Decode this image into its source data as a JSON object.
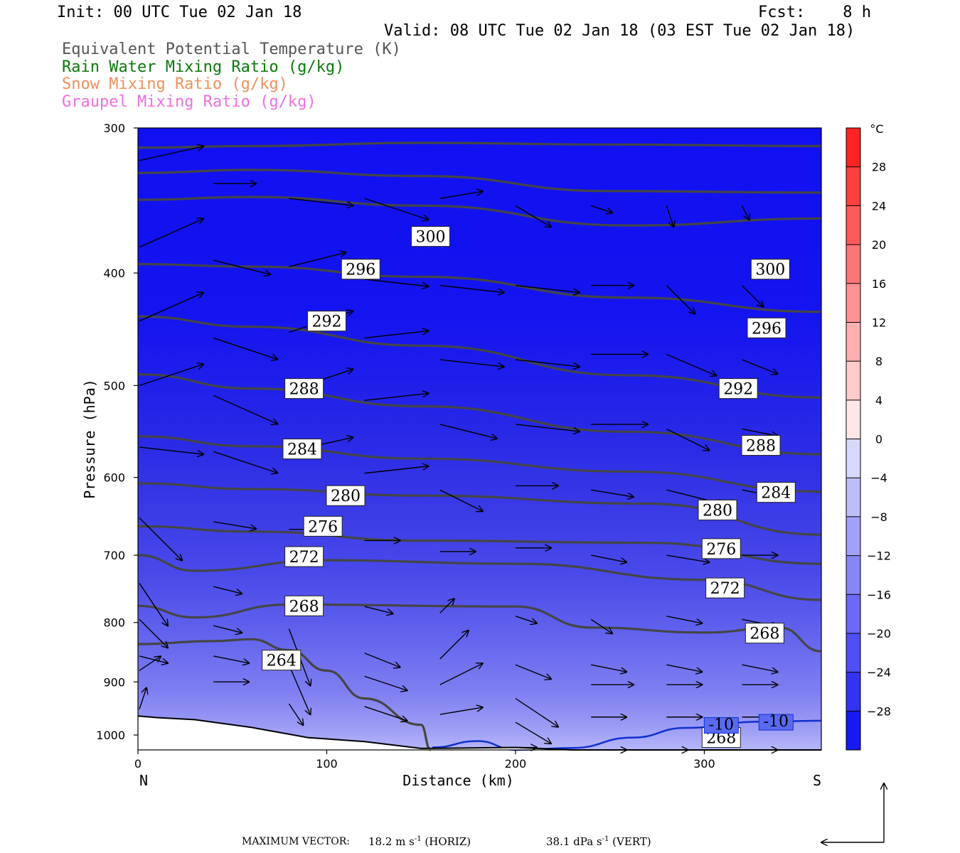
{
  "header": {
    "init": "Init: 00 UTC Tue 02 Jan 18",
    "fcst": "Fcst:    8 h",
    "valid": "Valid: 08 UTC Tue 02 Jan 18 (03 EST Tue 02 Jan 18)",
    "fields": [
      {
        "label": "Equivalent Potential Temperature (K)",
        "color": "#555555"
      },
      {
        "label": "Rain Water Mixing Ratio (g/kg)",
        "color": "#0a7a0a"
      },
      {
        "label": "Snow Mixing Ratio (g/kg)",
        "color": "#f0905a"
      },
      {
        "label": "Graupel Mixing Ratio (g/kg)",
        "color": "#f070e0"
      }
    ]
  },
  "chart_data": {
    "type": "heatmap",
    "xlabel": "Distance (km)",
    "ylabel": "Pressure (hPa)",
    "xlim": [
      0,
      362
    ],
    "ylim": [
      1030,
      300
    ],
    "y_scale": "log",
    "x_ticks": [
      0,
      100,
      200,
      300
    ],
    "y_ticks": [
      300,
      400,
      500,
      600,
      700,
      800,
      900,
      1000
    ],
    "x_end_labels": {
      "left": "N",
      "right": "S"
    },
    "colorbar": {
      "unit": "°C",
      "ticks": [
        28,
        24,
        20,
        16,
        12,
        8,
        4,
        0,
        -4,
        -8,
        -12,
        -16,
        -20,
        -24,
        -28
      ],
      "range": [
        -32,
        32
      ]
    },
    "theta_e_contours": [
      {
        "label": "300",
        "points": [
          [
            0,
            312
          ],
          [
            60,
            311
          ],
          [
            150,
            309
          ],
          [
            250,
            310
          ],
          [
            362,
            311
          ]
        ]
      },
      {
        "label": "300",
        "points": [
          [
            0,
            328
          ],
          [
            60,
            326
          ],
          [
            150,
            330
          ],
          [
            250,
            340
          ],
          [
            362,
            341
          ]
        ]
      },
      {
        "label": "300",
        "points": [
          [
            0,
            346
          ],
          [
            60,
            344
          ],
          [
            150,
            350
          ],
          [
            260,
            364
          ],
          [
            362,
            359
          ]
        ]
      },
      {
        "label": "296",
        "points": [
          [
            0,
            393
          ],
          [
            60,
            395
          ],
          [
            150,
            403
          ],
          [
            260,
            420
          ],
          [
            362,
            432
          ]
        ]
      },
      {
        "label": "292",
        "points": [
          [
            0,
            436
          ],
          [
            60,
            445
          ],
          [
            150,
            462
          ],
          [
            260,
            490
          ],
          [
            362,
            512
          ]
        ]
      },
      {
        "label": "288",
        "points": [
          [
            0,
            489
          ],
          [
            60,
            503
          ],
          [
            150,
            521
          ],
          [
            260,
            548
          ],
          [
            362,
            573
          ]
        ]
      },
      {
        "label": "284",
        "points": [
          [
            0,
            553
          ],
          [
            60,
            564
          ],
          [
            150,
            578
          ],
          [
            260,
            593
          ],
          [
            362,
            617
          ]
        ]
      },
      {
        "label": "280",
        "points": [
          [
            0,
            607
          ],
          [
            60,
            614
          ],
          [
            150,
            622
          ],
          [
            270,
            632
          ],
          [
            362,
            672
          ]
        ]
      },
      {
        "label": "276",
        "points": [
          [
            0,
            661
          ],
          [
            60,
            668
          ],
          [
            150,
            680
          ],
          [
            270,
            683
          ],
          [
            362,
            712
          ]
        ]
      },
      {
        "label": "272",
        "points": [
          [
            0,
            700
          ],
          [
            30,
            722
          ],
          [
            100,
            707
          ],
          [
            200,
            712
          ],
          [
            300,
            735
          ],
          [
            362,
            765
          ]
        ]
      },
      {
        "label": "268",
        "points": [
          [
            0,
            774
          ],
          [
            30,
            792
          ],
          [
            80,
            772
          ],
          [
            200,
            775
          ],
          [
            240,
            808
          ],
          [
            300,
            816
          ],
          [
            340,
            808
          ],
          [
            362,
            847
          ]
        ]
      },
      {
        "label": "264",
        "points": [
          [
            0,
            835
          ],
          [
            40,
            830
          ],
          [
            60,
            827
          ],
          [
            80,
            845
          ],
          [
            100,
            880
          ],
          [
            120,
            930
          ],
          [
            150,
            980
          ],
          [
            155,
            1030
          ]
        ]
      }
    ],
    "temperature_contours": [
      {
        "label": "-10",
        "color": "#1030d0",
        "points": [
          [
            156,
            1025
          ],
          [
            180,
            1012
          ],
          [
            200,
            1030
          ],
          [
            230,
            1026
          ],
          [
            262,
            1005
          ],
          [
            290,
            986
          ],
          [
            330,
            974
          ],
          [
            362,
            972
          ]
        ]
      }
    ],
    "contour_labels": [
      {
        "text": "300",
        "x": 155,
        "y": 372
      },
      {
        "text": "296",
        "x": 118,
        "y": 397
      },
      {
        "text": "292",
        "x": 100,
        "y": 440
      },
      {
        "text": "288",
        "x": 88,
        "y": 503
      },
      {
        "text": "284",
        "x": 87,
        "y": 567
      },
      {
        "text": "280",
        "x": 110,
        "y": 622
      },
      {
        "text": "276",
        "x": 98,
        "y": 661
      },
      {
        "text": "272",
        "x": 88,
        "y": 702
      },
      {
        "text": "268",
        "x": 88,
        "y": 774
      },
      {
        "text": "264",
        "x": 76,
        "y": 862
      },
      {
        "text": "300",
        "x": 335,
        "y": 397
      },
      {
        "text": "296",
        "x": 333,
        "y": 446
      },
      {
        "text": "292",
        "x": 318,
        "y": 503
      },
      {
        "text": "288",
        "x": 330,
        "y": 563
      },
      {
        "text": "284",
        "x": 338,
        "y": 618
      },
      {
        "text": "280",
        "x": 307,
        "y": 640
      },
      {
        "text": "276",
        "x": 309,
        "y": 691
      },
      {
        "text": "272",
        "x": 311,
        "y": 747
      },
      {
        "text": "268",
        "x": 332,
        "y": 817
      },
      {
        "text": "268",
        "x": 309,
        "y": 1005
      },
      {
        "text": "-10",
        "x": 309,
        "y": 981,
        "style": "temp"
      },
      {
        "text": "-10",
        "x": 338,
        "y": 975,
        "style": "temp"
      }
    ],
    "terrain_surface_hpa": [
      [
        0,
        963
      ],
      [
        10,
        966
      ],
      [
        30,
        970
      ],
      [
        60,
        985
      ],
      [
        90,
        1005
      ],
      [
        120,
        1013
      ],
      [
        150,
        1027
      ],
      [
        200,
        1025
      ],
      [
        230,
        1030
      ],
      [
        362,
        1030
      ]
    ],
    "wind_vectors": [
      {
        "x": 0,
        "p": 380,
        "u": 9,
        "v": 4
      },
      {
        "x": 0,
        "p": 440,
        "u": 9,
        "v": 4
      },
      {
        "x": 0,
        "p": 500,
        "u": 9,
        "v": 3
      },
      {
        "x": 0,
        "p": 320,
        "u": 9,
        "v": 2
      },
      {
        "x": 0,
        "p": 650,
        "u": 6,
        "v": -6
      },
      {
        "x": 0,
        "p": 740,
        "u": 4,
        "v": -6
      },
      {
        "x": 0,
        "p": 795,
        "u": 4,
        "v": -4
      },
      {
        "x": 0,
        "p": 880,
        "u": 3,
        "v": 2
      },
      {
        "x": 0,
        "p": 950,
        "u": 1,
        "v": 3
      },
      {
        "x": 0,
        "p": 855,
        "u": 4,
        "v": -1
      },
      {
        "x": 0,
        "p": 565,
        "u": 9,
        "v": -1
      },
      {
        "x": 40,
        "p": 335,
        "u": 6,
        "v": 0
      },
      {
        "x": 40,
        "p": 390,
        "u": 8,
        "v": -2
      },
      {
        "x": 40,
        "p": 455,
        "u": 9,
        "v": -3
      },
      {
        "x": 40,
        "p": 510,
        "u": 9,
        "v": -4
      },
      {
        "x": 40,
        "p": 570,
        "u": 9,
        "v": -3
      },
      {
        "x": 40,
        "p": 655,
        "u": 6,
        "v": -1
      },
      {
        "x": 40,
        "p": 745,
        "u": 4,
        "v": -1
      },
      {
        "x": 40,
        "p": 805,
        "u": 4,
        "v": -1
      },
      {
        "x": 40,
        "p": 855,
        "u": 5,
        "v": -1
      },
      {
        "x": 40,
        "p": 900,
        "u": 5,
        "v": 0
      },
      {
        "x": 80,
        "p": 345,
        "u": 9,
        "v": -1
      },
      {
        "x": 80,
        "p": 395,
        "u": 8,
        "v": 2
      },
      {
        "x": 80,
        "p": 450,
        "u": 9,
        "v": 3
      },
      {
        "x": 80,
        "p": 505,
        "u": 9,
        "v": 3
      },
      {
        "x": 80,
        "p": 570,
        "u": 9,
        "v": 2
      },
      {
        "x": 80,
        "p": 665,
        "u": 6,
        "v": 0
      },
      {
        "x": 80,
        "p": 760,
        "u": 3,
        "v": -2
      },
      {
        "x": 80,
        "p": 810,
        "u": 3,
        "v": -8
      },
      {
        "x": 80,
        "p": 870,
        "u": 3,
        "v": -7
      },
      {
        "x": 80,
        "p": 940,
        "u": 2,
        "v": -3
      },
      {
        "x": 120,
        "p": 345,
        "u": 9,
        "v": -3
      },
      {
        "x": 120,
        "p": 405,
        "u": 9,
        "v": -1
      },
      {
        "x": 120,
        "p": 455,
        "u": 9,
        "v": 1
      },
      {
        "x": 120,
        "p": 515,
        "u": 9,
        "v": 1
      },
      {
        "x": 120,
        "p": 595,
        "u": 9,
        "v": 1
      },
      {
        "x": 120,
        "p": 680,
        "u": 5,
        "v": 0
      },
      {
        "x": 120,
        "p": 775,
        "u": 4,
        "v": -1
      },
      {
        "x": 120,
        "p": 850,
        "u": 5,
        "v": -2
      },
      {
        "x": 120,
        "p": 890,
        "u": 6,
        "v": -2
      },
      {
        "x": 120,
        "p": 945,
        "u": 6,
        "v": -2
      },
      {
        "x": 160,
        "p": 345,
        "u": 6,
        "v": 1
      },
      {
        "x": 160,
        "p": 410,
        "u": 9,
        "v": -1
      },
      {
        "x": 160,
        "p": 475,
        "u": 9,
        "v": -1
      },
      {
        "x": 160,
        "p": 540,
        "u": 8,
        "v": -2
      },
      {
        "x": 160,
        "p": 615,
        "u": 6,
        "v": -3
      },
      {
        "x": 160,
        "p": 695,
        "u": 5,
        "v": 0
      },
      {
        "x": 160,
        "p": 785,
        "u": 2,
        "v": 2
      },
      {
        "x": 160,
        "p": 860,
        "u": 4,
        "v": 4
      },
      {
        "x": 160,
        "p": 905,
        "u": 6,
        "v": 3
      },
      {
        "x": 160,
        "p": 960,
        "u": 6,
        "v": 1
      },
      {
        "x": 200,
        "p": 350,
        "u": 5,
        "v": -3
      },
      {
        "x": 200,
        "p": 410,
        "u": 9,
        "v": -1
      },
      {
        "x": 200,
        "p": 475,
        "u": 9,
        "v": -1
      },
      {
        "x": 200,
        "p": 540,
        "u": 9,
        "v": -1
      },
      {
        "x": 200,
        "p": 610,
        "u": 6,
        "v": 0
      },
      {
        "x": 200,
        "p": 690,
        "u": 5,
        "v": 0
      },
      {
        "x": 200,
        "p": 790,
        "u": 3,
        "v": -1
      },
      {
        "x": 200,
        "p": 870,
        "u": 5,
        "v": -2
      },
      {
        "x": 200,
        "p": 930,
        "u": 6,
        "v": -4
      },
      {
        "x": 200,
        "p": 975,
        "u": 5,
        "v": -3
      },
      {
        "x": 200,
        "p": 1025,
        "u": 3,
        "v": 0
      },
      {
        "x": 240,
        "p": 350,
        "u": 3,
        "v": -1
      },
      {
        "x": 240,
        "p": 410,
        "u": 6,
        "v": 0
      },
      {
        "x": 240,
        "p": 470,
        "u": 8,
        "v": 0
      },
      {
        "x": 240,
        "p": 540,
        "u": 8,
        "v": 0
      },
      {
        "x": 240,
        "p": 615,
        "u": 6,
        "v": -1
      },
      {
        "x": 240,
        "p": 700,
        "u": 5,
        "v": -1
      },
      {
        "x": 240,
        "p": 795,
        "u": 3,
        "v": -2
      },
      {
        "x": 240,
        "p": 870,
        "u": 5,
        "v": -1
      },
      {
        "x": 240,
        "p": 905,
        "u": 6,
        "v": 0
      },
      {
        "x": 240,
        "p": 965,
        "u": 5,
        "v": 0
      },
      {
        "x": 240,
        "p": 1030,
        "u": 5,
        "v": 0
      },
      {
        "x": 280,
        "p": 350,
        "u": 1,
        "v": -3
      },
      {
        "x": 280,
        "p": 410,
        "u": 4,
        "v": -4
      },
      {
        "x": 280,
        "p": 470,
        "u": 7,
        "v": -3
      },
      {
        "x": 280,
        "p": 545,
        "u": 6,
        "v": -3
      },
      {
        "x": 280,
        "p": 615,
        "u": 8,
        "v": -2
      },
      {
        "x": 280,
        "p": 700,
        "u": 6,
        "v": -1
      },
      {
        "x": 280,
        "p": 790,
        "u": 5,
        "v": -1
      },
      {
        "x": 280,
        "p": 870,
        "u": 5,
        "v": -1
      },
      {
        "x": 280,
        "p": 905,
        "u": 5,
        "v": 0
      },
      {
        "x": 280,
        "p": 965,
        "u": 5,
        "v": 0
      },
      {
        "x": 280,
        "p": 1030,
        "u": 3,
        "v": 0
      },
      {
        "x": 320,
        "p": 350,
        "u": 1,
        "v": -2
      },
      {
        "x": 320,
        "p": 410,
        "u": 3,
        "v": -3
      },
      {
        "x": 320,
        "p": 475,
        "u": 5,
        "v": -2
      },
      {
        "x": 320,
        "p": 545,
        "u": 5,
        "v": -1
      },
      {
        "x": 320,
        "p": 615,
        "u": 5,
        "v": -1
      },
      {
        "x": 320,
        "p": 700,
        "u": 5,
        "v": 0
      },
      {
        "x": 320,
        "p": 795,
        "u": 5,
        "v": -1
      },
      {
        "x": 320,
        "p": 870,
        "u": 5,
        "v": -1
      },
      {
        "x": 320,
        "p": 905,
        "u": 5,
        "v": 0
      },
      {
        "x": 320,
        "p": 965,
        "u": 5,
        "v": 0
      },
      {
        "x": 320,
        "p": 1030,
        "u": 5,
        "v": 0
      }
    ]
  },
  "footer": {
    "max_vector_label": "MAXIMUM VECTOR:",
    "horiz_value": "18.2 m s",
    "horiz_exp": "-1",
    "horiz_tag": "(HORIZ)",
    "vert_value": "38.1 dPa s",
    "vert_exp": "-1",
    "vert_tag": "(VERT)"
  },
  "colors": {
    "theta_e": "#454545",
    "terrain": "#ffffff",
    "arrow": "#000000"
  }
}
